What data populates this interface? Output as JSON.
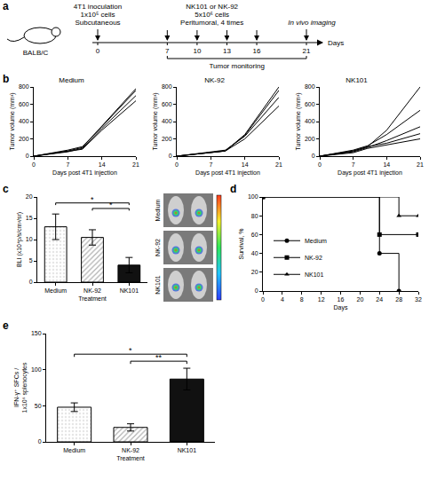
{
  "schematic": {
    "panel": "a",
    "mouse_label": "BALB/C",
    "inoculation": [
      "4T1 inoculation",
      "1x10⁵ cells",
      "Subcutaneous"
    ],
    "treatment": [
      "NK101 or NK-92",
      "5x10⁶ cells",
      "Peritumoral, 4 times"
    ],
    "imaging": "In vivo imaging",
    "monitoring": "Tumor monitoring",
    "axis_label": "Days",
    "days": [
      0,
      7,
      10,
      13,
      16,
      21
    ],
    "inoculation_day": 0,
    "treatment_days": [
      7,
      10,
      13,
      16
    ],
    "imaging_day": 21,
    "monitoring_days": [
      7,
      21
    ]
  },
  "image_panel": {
    "labels": [
      "Medium",
      "NK-92",
      "NK101"
    ]
  },
  "chart_data": [
    {
      "panel": "b",
      "type": "line",
      "title": "Medium",
      "x_label": "Days post 4T1 injection",
      "y_label": "Tumor volume (mm³)",
      "x": [
        0,
        7,
        10,
        14,
        21
      ],
      "series": [
        {
          "color": "#000000",
          "values": [
            0,
            60,
            100,
            350,
            780
          ]
        },
        {
          "color": "#000000",
          "values": [
            0,
            70,
            110,
            340,
            760
          ]
        },
        {
          "color": "#000000",
          "values": [
            0,
            50,
            90,
            320,
            700
          ]
        },
        {
          "color": "#000000",
          "values": [
            0,
            60,
            80,
            300,
            640
          ]
        }
      ],
      "xlim": [
        0,
        21
      ],
      "xticks": [
        0,
        7,
        14,
        21
      ],
      "ylim": [
        0,
        800
      ],
      "yticks": [
        0,
        200,
        400,
        600,
        800
      ],
      "grid": false
    },
    {
      "type": "line",
      "title": "NK-92",
      "x_label": "Days post 4T1 injection",
      "y_label": "Tumor volume (mm³)",
      "x": [
        0,
        7,
        10,
        14,
        21
      ],
      "series": [
        {
          "color": "#000000",
          "values": [
            0,
            40,
            60,
            250,
            800
          ]
        },
        {
          "color": "#000000",
          "values": [
            0,
            45,
            60,
            240,
            760
          ]
        },
        {
          "color": "#000000",
          "values": [
            0,
            50,
            70,
            230,
            680
          ]
        },
        {
          "color": "#000000",
          "values": [
            0,
            40,
            60,
            200,
            580
          ]
        }
      ],
      "xlim": [
        0,
        21
      ],
      "xticks": [
        0,
        7,
        14,
        21
      ],
      "ylim": [
        0,
        800
      ],
      "yticks": [
        0,
        200,
        400,
        600,
        800
      ],
      "grid": false
    },
    {
      "type": "line",
      "title": "NK101",
      "x_label": "Days post 4T1 injection",
      "y_label": "Tumor volume (mm³)",
      "x": [
        0,
        7,
        10,
        14,
        21
      ],
      "series": [
        {
          "color": "#000000",
          "values": [
            0,
            60,
            110,
            300,
            800
          ]
        },
        {
          "color": "#000000",
          "values": [
            0,
            70,
            120,
            250,
            530
          ]
        },
        {
          "color": "#000000",
          "values": [
            0,
            50,
            100,
            180,
            340
          ]
        },
        {
          "color": "#000000",
          "values": [
            0,
            60,
            110,
            150,
            260
          ]
        },
        {
          "color": "#000000",
          "values": [
            0,
            40,
            90,
            130,
            200
          ]
        }
      ],
      "xlim": [
        0,
        21
      ],
      "xticks": [
        0,
        7,
        14,
        21
      ],
      "ylim": [
        0,
        800
      ],
      "yticks": [
        0,
        200,
        400,
        600,
        800
      ],
      "grid": false
    },
    {
      "panel": "c",
      "type": "bar",
      "x_label": "Treatment",
      "y_label": "BLI (x10⁴p/s/cm²/sr)",
      "categories": [
        "Medium",
        "NK-92",
        "NK101"
      ],
      "values": [
        13,
        10.5,
        4
      ],
      "errors": [
        3,
        1.8,
        1.8
      ],
      "colors": [
        "#e6e6e6",
        "#b0b0b0",
        "#111111"
      ],
      "ylim": [
        0,
        20
      ],
      "yticks": [
        0,
        5,
        10,
        15,
        20
      ],
      "comparisons": [
        {
          "pair": [
            0,
            2
          ],
          "label": "*"
        },
        {
          "pair": [
            1,
            2
          ],
          "label": "*"
        }
      ],
      "grid": false
    },
    {
      "panel": "d",
      "type": "step",
      "x_label": "Days",
      "y_label": "Survival, %",
      "series": [
        {
          "name": "Medium",
          "x": [
            0,
            24,
            28
          ],
          "values": [
            100,
            40,
            0
          ],
          "marker": "circle",
          "color": "#000000"
        },
        {
          "name": "NK-92",
          "x": [
            0,
            24,
            32
          ],
          "values": [
            100,
            60,
            60
          ],
          "marker": "square",
          "color": "#000000"
        },
        {
          "name": "NK101",
          "x": [
            0,
            28,
            32
          ],
          "values": [
            100,
            80,
            80
          ],
          "marker": "triangle-up",
          "color": "#000000"
        }
      ],
      "xlim": [
        0,
        32
      ],
      "xticks": [
        0,
        4,
        8,
        12,
        16,
        20,
        24,
        28,
        32
      ],
      "ylim": [
        0,
        100
      ],
      "yticks": [
        0,
        20,
        40,
        60,
        80,
        100
      ],
      "legend": "lower left",
      "grid": false
    },
    {
      "panel": "e",
      "type": "bar",
      "x_label": "Treatment",
      "y_label": "IFN-γ⁺ SFCs / 1x10⁶ splenocytes",
      "categories": [
        "Medium",
        "NK-92",
        "NK101"
      ],
      "values": [
        48,
        20,
        87
      ],
      "errors": [
        6,
        5,
        15
      ],
      "colors": [
        "#e6e6e6",
        "#b0b0b0",
        "#111111"
      ],
      "ylim": [
        0,
        150
      ],
      "yticks": [
        0,
        50,
        100,
        150
      ],
      "comparisons": [
        {
          "pair": [
            0,
            2
          ],
          "label": "*"
        },
        {
          "pair": [
            1,
            2
          ],
          "label": "**"
        }
      ],
      "grid": false
    }
  ]
}
